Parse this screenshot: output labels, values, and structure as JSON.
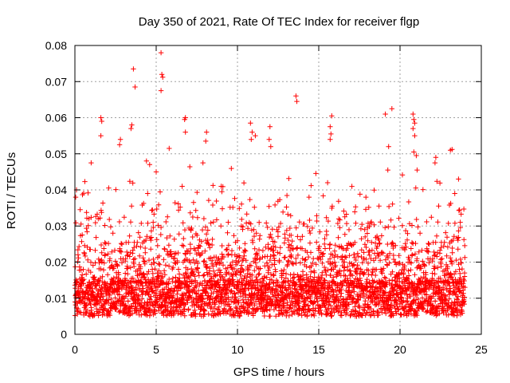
{
  "chart_data": {
    "type": "scatter",
    "title": "Day 350 of 2021, Rate Of TEC Index for receiver flgp",
    "xlabel": "GPS time / hours",
    "ylabel": "ROTI / TECUs",
    "xlim": [
      0,
      25
    ],
    "ylim": [
      0,
      0.08
    ],
    "xticks": [
      "0",
      "5",
      "10",
      "15",
      "20",
      "25"
    ],
    "yticks": [
      "0",
      "0.01",
      "0.02",
      "0.03",
      "0.04",
      "0.05",
      "0.06",
      "0.07",
      "0.08"
    ],
    "grid": true,
    "marker": "+",
    "color": "#ff0000",
    "data_range_hours": [
      0,
      24
    ],
    "baseline_band": [
      0.005,
      0.015
    ],
    "peak_points": [
      {
        "x": 3.6,
        "y": 0.0735
      },
      {
        "x": 3.7,
        "y": 0.0685
      },
      {
        "x": 5.3,
        "y": 0.078
      },
      {
        "x": 5.35,
        "y": 0.072
      },
      {
        "x": 5.4,
        "y": 0.0712
      },
      {
        "x": 5.3,
        "y": 0.0675
      },
      {
        "x": 1.6,
        "y": 0.06
      },
      {
        "x": 1.65,
        "y": 0.059
      },
      {
        "x": 1.6,
        "y": 0.055
      },
      {
        "x": 3.5,
        "y": 0.058
      },
      {
        "x": 3.45,
        "y": 0.057
      },
      {
        "x": 2.8,
        "y": 0.054
      },
      {
        "x": 2.75,
        "y": 0.0525
      },
      {
        "x": 6.8,
        "y": 0.06
      },
      {
        "x": 6.75,
        "y": 0.0595
      },
      {
        "x": 6.8,
        "y": 0.056
      },
      {
        "x": 5.8,
        "y": 0.0515
      },
      {
        "x": 8.1,
        "y": 0.056
      },
      {
        "x": 8.05,
        "y": 0.0535
      },
      {
        "x": 10.8,
        "y": 0.0585
      },
      {
        "x": 10.9,
        "y": 0.056
      },
      {
        "x": 11.1,
        "y": 0.055
      },
      {
        "x": 10.85,
        "y": 0.054
      },
      {
        "x": 12.0,
        "y": 0.0575
      },
      {
        "x": 11.95,
        "y": 0.054
      },
      {
        "x": 12.05,
        "y": 0.052
      },
      {
        "x": 13.6,
        "y": 0.066
      },
      {
        "x": 13.65,
        "y": 0.0645
      },
      {
        "x": 15.8,
        "y": 0.0605
      },
      {
        "x": 15.7,
        "y": 0.0575
      },
      {
        "x": 15.75,
        "y": 0.0555
      },
      {
        "x": 15.7,
        "y": 0.054
      },
      {
        "x": 19.1,
        "y": 0.061
      },
      {
        "x": 19.5,
        "y": 0.0625
      },
      {
        "x": 19.3,
        "y": 0.052
      },
      {
        "x": 19.25,
        "y": 0.0455
      },
      {
        "x": 20.8,
        "y": 0.061
      },
      {
        "x": 20.85,
        "y": 0.0595
      },
      {
        "x": 20.9,
        "y": 0.0585
      },
      {
        "x": 20.8,
        "y": 0.057
      },
      {
        "x": 20.9,
        "y": 0.055
      },
      {
        "x": 20.85,
        "y": 0.0505
      },
      {
        "x": 21.0,
        "y": 0.0495
      },
      {
        "x": 21.05,
        "y": 0.0455
      },
      {
        "x": 22.2,
        "y": 0.049
      },
      {
        "x": 22.15,
        "y": 0.0475
      },
      {
        "x": 23.1,
        "y": 0.051
      },
      {
        "x": 23.2,
        "y": 0.0512
      },
      {
        "x": 1.0,
        "y": 0.0475
      },
      {
        "x": 4.4,
        "y": 0.048
      },
      {
        "x": 4.6,
        "y": 0.047
      },
      {
        "x": 5.0,
        "y": 0.045
      },
      {
        "x": 0.1,
        "y": 0.04
      },
      {
        "x": 0.05,
        "y": 0.038
      },
      {
        "x": 6.6,
        "y": 0.041
      },
      {
        "x": 9.0,
        "y": 0.041
      },
      {
        "x": 14.4,
        "y": 0.038
      },
      {
        "x": 17.9,
        "y": 0.038
      },
      {
        "x": 23.6,
        "y": 0.043
      }
    ]
  }
}
